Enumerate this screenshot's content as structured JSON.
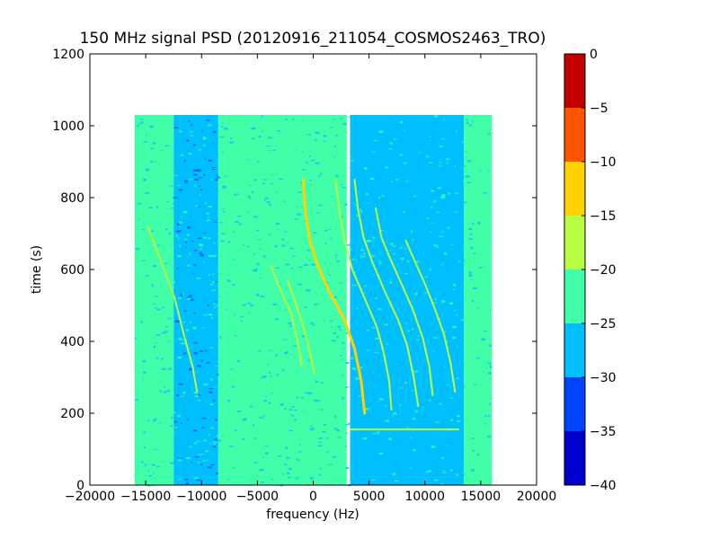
{
  "chart_data": {
    "type": "heatmap",
    "title": "150 MHz signal PSD (20120916_211054_COSMOS2463_TRO)",
    "xlabel": "frequency (Hz)",
    "ylabel": "time (s)",
    "xlim": [
      -20000,
      20000
    ],
    "ylim": [
      0,
      1200
    ],
    "xticks": [
      -20000,
      -15000,
      -10000,
      -5000,
      0,
      5000,
      10000,
      15000,
      20000
    ],
    "yticks": [
      0,
      200,
      400,
      600,
      800,
      1000,
      1200
    ],
    "data_extent": {
      "x": [
        -16000,
        16000
      ],
      "y": [
        0,
        1030
      ]
    },
    "colorbar": {
      "min": -40,
      "max": 0,
      "ticks": [
        0,
        -5,
        -10,
        -15,
        -20,
        -25,
        -30,
        -35,
        -40
      ],
      "levels": [
        {
          "range": [
            -40,
            -35
          ],
          "color": "#0000cd"
        },
        {
          "range": [
            -35,
            -30
          ],
          "color": "#0044ff"
        },
        {
          "range": [
            -30,
            -25
          ],
          "color": "#00bfff"
        },
        {
          "range": [
            -25,
            -20
          ],
          "color": "#40ffa8"
        },
        {
          "range": [
            -20,
            -15
          ],
          "color": "#b7ff40"
        },
        {
          "range": [
            -15,
            -10
          ],
          "color": "#ffd200"
        },
        {
          "range": [
            -10,
            -5
          ],
          "color": "#ff5500"
        },
        {
          "range": [
            -5,
            0
          ],
          "color": "#c00000"
        }
      ]
    },
    "regions": [
      {
        "x": [
          -16000,
          -12500
        ],
        "y": [
          0,
          1030
        ],
        "level": -25
      },
      {
        "x": [
          -12500,
          -8500
        ],
        "y": [
          0,
          1030
        ],
        "level": -30
      },
      {
        "x": [
          -8500,
          0
        ],
        "y": [
          0,
          1030
        ],
        "level": -25
      },
      {
        "x": [
          0,
          3000
        ],
        "y": [
          0,
          1030
        ],
        "level": -25
      },
      {
        "x": [
          3300,
          13500
        ],
        "y": [
          0,
          1030
        ],
        "level": -30
      },
      {
        "x": [
          13500,
          16000
        ],
        "y": [
          0,
          1030
        ],
        "level": -25
      }
    ],
    "traces": [
      {
        "level": -15,
        "points": [
          [
            -900,
            850
          ],
          [
            -700,
            760
          ],
          [
            -300,
            680
          ],
          [
            300,
            620
          ],
          [
            1400,
            540
          ],
          [
            2800,
            460
          ],
          [
            3700,
            380
          ],
          [
            4300,
            290
          ],
          [
            4600,
            200
          ]
        ]
      },
      {
        "level": -20,
        "points": [
          [
            2000,
            850
          ],
          [
            2300,
            770
          ],
          [
            2800,
            680
          ],
          [
            3500,
            600
          ],
          [
            4600,
            520
          ],
          [
            5700,
            440
          ],
          [
            6300,
            370
          ],
          [
            6800,
            290
          ],
          [
            7000,
            210
          ]
        ]
      },
      {
        "level": -20,
        "points": [
          [
            3700,
            850
          ],
          [
            4000,
            770
          ],
          [
            4500,
            690
          ],
          [
            5300,
            620
          ],
          [
            6400,
            540
          ],
          [
            7600,
            460
          ],
          [
            8400,
            390
          ],
          [
            9000,
            300
          ],
          [
            9400,
            220
          ]
        ]
      },
      {
        "level": -20,
        "points": [
          [
            5600,
            770
          ],
          [
            6100,
            690
          ],
          [
            6900,
            630
          ],
          [
            7900,
            560
          ],
          [
            8900,
            490
          ],
          [
            9800,
            410
          ],
          [
            10400,
            330
          ],
          [
            10700,
            250
          ]
        ]
      },
      {
        "level": -20,
        "points": [
          [
            8300,
            680
          ],
          [
            9000,
            630
          ],
          [
            10000,
            560
          ],
          [
            10900,
            490
          ],
          [
            11700,
            420
          ],
          [
            12300,
            340
          ],
          [
            12700,
            260
          ]
        ]
      },
      {
        "level": -20,
        "points": [
          [
            -3800,
            610
          ],
          [
            -2900,
            540
          ],
          [
            -2000,
            480
          ],
          [
            -1400,
            400
          ],
          [
            -1000,
            330
          ]
        ]
      },
      {
        "level": -20,
        "points": [
          [
            -2300,
            570
          ],
          [
            -1500,
            500
          ],
          [
            -800,
            430
          ],
          [
            -300,
            370
          ],
          [
            100,
            310
          ]
        ]
      },
      {
        "level": -20,
        "points": [
          [
            -14800,
            720
          ],
          [
            -13600,
            620
          ],
          [
            -12400,
            520
          ],
          [
            -11600,
            420
          ],
          [
            -10800,
            330
          ],
          [
            -10400,
            260
          ]
        ]
      },
      {
        "level": -20,
        "points": [
          [
            3300,
            155
          ],
          [
            13000,
            155
          ]
        ]
      }
    ]
  }
}
